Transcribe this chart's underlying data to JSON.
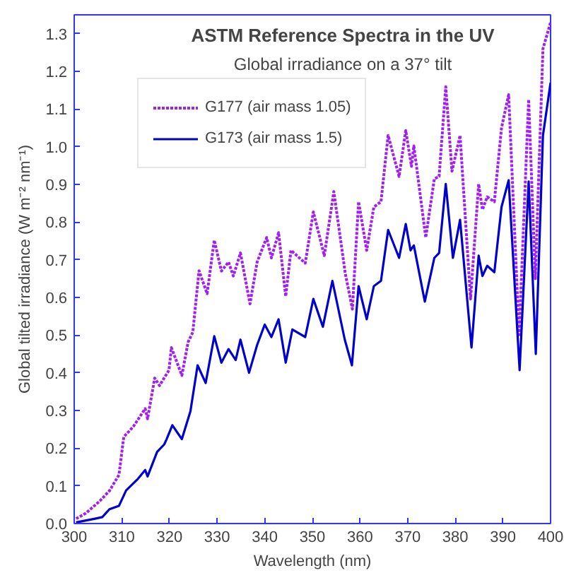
{
  "chart_data": {
    "type": "line",
    "title": "ASTM Reference Spectra in the UV",
    "subtitle": "Global irradiance on a 37° tilt",
    "xlabel": "Wavelength (nm)",
    "ylabel": "Global tilted irradiance (W m⁻² nm⁻¹)",
    "xlim": [
      300,
      400
    ],
    "ylim": [
      0,
      1.35
    ],
    "xticks": [
      300,
      310,
      320,
      330,
      340,
      350,
      360,
      370,
      380,
      390,
      400
    ],
    "yticks": [
      {
        "value": 0,
        "label": "0.0"
      },
      {
        "value": 0.1,
        "label": "0.1"
      },
      {
        "value": 0.2,
        "label": "0.2"
      },
      {
        "value": 0.3,
        "label": "0.3"
      },
      {
        "value": 0.4,
        "label": "0.4"
      },
      {
        "value": 0.5,
        "label": "0.5"
      },
      {
        "value": 0.6,
        "label": "0.6"
      },
      {
        "value": 0.7,
        "label": "0.7"
      },
      {
        "value": 0.8,
        "label": "0.8"
      },
      {
        "value": 0.9,
        "label": "0.9"
      },
      {
        "value": 1.0,
        "label": "1.0"
      },
      {
        "value": 1.1,
        "label": "1.1"
      },
      {
        "value": 1.2,
        "label": "1.2"
      },
      {
        "value": 1.3,
        "label": "1.3"
      }
    ],
    "grid": false,
    "legend": "top left",
    "series": [
      {
        "name": "G177 (air mass 1.05)",
        "color": "#a020f0",
        "line_style": "dotted",
        "x": [
          300.4,
          302.4,
          305.4,
          307.4,
          309.4,
          310.4,
          312.4,
          314.9,
          315.4,
          316.9,
          317.9,
          319.9,
          320.4,
          322.6,
          323.9,
          324.9,
          326.2,
          327.9,
          329.4,
          330.9,
          332.4,
          333.4,
          334.9,
          336.9,
          338.4,
          340.4,
          341.4,
          342.9,
          344.4,
          345.5,
          348.5,
          350.2,
          352.5,
          354.5,
          356.9,
          358.4,
          359.7,
          361.4,
          362.9,
          364.4,
          365.9,
          368.2,
          369.6,
          370.8,
          371.3,
          373.8,
          375.6,
          376.6,
          378.0,
          379.3,
          381.0,
          383.2,
          384.9,
          385.7,
          386.7,
          388.2,
          389.7,
          391.2,
          393.4,
          395.4,
          396.8,
          398.4,
          400
        ],
        "values": [
          0.013,
          0.027,
          0.06,
          0.087,
          0.129,
          0.23,
          0.257,
          0.305,
          0.278,
          0.386,
          0.366,
          0.407,
          0.467,
          0.393,
          0.481,
          0.508,
          0.671,
          0.61,
          0.752,
          0.67,
          0.694,
          0.657,
          0.718,
          0.583,
          0.694,
          0.759,
          0.705,
          0.772,
          0.603,
          0.725,
          0.691,
          0.827,
          0.711,
          0.881,
          0.664,
          0.569,
          0.854,
          0.725,
          0.84,
          0.854,
          1.03,
          0.921,
          1.043,
          0.948,
          1.002,
          0.759,
          0.915,
          0.921,
          1.159,
          0.935,
          1.03,
          0.596,
          0.901,
          0.833,
          0.867,
          0.854,
          1.05,
          1.138,
          0.501,
          1.125,
          0.65,
          1.26,
          1.33
        ]
      },
      {
        "name": "G173 (air mass 1.5)",
        "color": "#0000cc",
        "line_style": "solid",
        "x": [
          300.4,
          304.4,
          305.9,
          307.4,
          309.4,
          310.9,
          313.4,
          314.9,
          315.4,
          317.4,
          318.9,
          319.4,
          320.6,
          322.6,
          324.4,
          325.9,
          327.6,
          329.4,
          330.9,
          332.4,
          333.9,
          334.9,
          336.7,
          338.4,
          340.0,
          341.4,
          342.9,
          344.4,
          345.8,
          348.5,
          350.2,
          352.2,
          354.2,
          356.8,
          358.3,
          359.7,
          361.4,
          362.9,
          364.4,
          365.9,
          368.2,
          369.6,
          370.6,
          371.3,
          373.6,
          375.6,
          376.6,
          378.0,
          379.5,
          381.0,
          383.4,
          384.9,
          385.7,
          386.7,
          388.2,
          389.7,
          391.2,
          393.5,
          395.4,
          396.9,
          398.4,
          400
        ],
        "values": [
          0.003,
          0.013,
          0.017,
          0.038,
          0.047,
          0.088,
          0.119,
          0.142,
          0.125,
          0.19,
          0.21,
          0.224,
          0.261,
          0.224,
          0.298,
          0.42,
          0.373,
          0.497,
          0.427,
          0.463,
          0.434,
          0.488,
          0.4,
          0.474,
          0.528,
          0.495,
          0.542,
          0.427,
          0.515,
          0.495,
          0.596,
          0.522,
          0.644,
          0.488,
          0.42,
          0.63,
          0.542,
          0.63,
          0.644,
          0.779,
          0.705,
          0.795,
          0.725,
          0.738,
          0.589,
          0.705,
          0.718,
          0.901,
          0.705,
          0.806,
          0.467,
          0.711,
          0.657,
          0.684,
          0.667,
          0.84,
          0.911,
          0.407,
          0.908,
          0.45,
          1.03,
          1.17
        ]
      }
    ]
  }
}
